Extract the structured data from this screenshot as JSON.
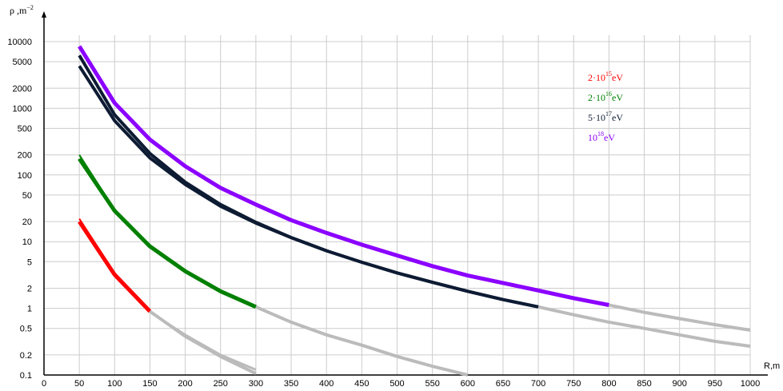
{
  "chart_data": {
    "type": "line",
    "ylabel": "ρ ,m",
    "ylabel_sup": "−2",
    "xlabel": "R,m",
    "x_scale": "linear",
    "y_scale": "log",
    "xlim": [
      0,
      1000
    ],
    "ylim": [
      0.1,
      10000
    ],
    "x_ticks": [
      0,
      50,
      100,
      150,
      200,
      250,
      300,
      350,
      400,
      450,
      500,
      550,
      600,
      650,
      700,
      750,
      800,
      850,
      900,
      950,
      1000
    ],
    "y_ticks": [
      0.1,
      0.2,
      0.5,
      1,
      2,
      5,
      10,
      20,
      50,
      100,
      200,
      500,
      1000,
      2000,
      5000,
      10000
    ],
    "y_tick_labels": [
      "0.1",
      "0.2",
      "0.5",
      "1",
      "2",
      "5",
      "10",
      "20",
      "50",
      "100",
      "200",
      "500",
      "1000",
      "2000",
      "5000",
      "10000"
    ],
    "grid": true,
    "legend_position": "top-right",
    "legend": [
      {
        "prefix": "2·10",
        "sup": "15",
        "suffix": "eV",
        "color": "#ff0000"
      },
      {
        "prefix": "2·10",
        "sup": "16",
        "suffix": "eV",
        "color": "#008000"
      },
      {
        "prefix": "5·10",
        "sup": "17",
        "suffix": "eV",
        "color": "#0d1b33"
      },
      {
        "prefix": "10",
        "sup": "18",
        "suffix": "eV",
        "color": "#8b00ff"
      }
    ],
    "series": [
      {
        "color": "#ff0000",
        "width": 5,
        "x": [
          50,
          100,
          150
        ],
        "y": [
          20,
          3.2,
          0.9
        ]
      },
      {
        "color": "#ff0000",
        "width": 2,
        "x": [
          50,
          100,
          150
        ],
        "y": [
          22,
          3.4,
          0.95
        ]
      },
      {
        "color": "#bbbbbb",
        "width": 4,
        "x": [
          150,
          200,
          250,
          300
        ],
        "y": [
          0.9,
          0.38,
          0.19,
          0.105
        ]
      },
      {
        "color": "#bbbbbb",
        "width": 3,
        "x": [
          150,
          200,
          250,
          300
        ],
        "y": [
          0.88,
          0.4,
          0.2,
          0.12
        ]
      },
      {
        "color": "#008000",
        "width": 5,
        "x": [
          50,
          100,
          150,
          200,
          250,
          300
        ],
        "y": [
          175,
          29,
          8.5,
          3.6,
          1.8,
          1.05
        ]
      },
      {
        "color": "#008000",
        "width": 2,
        "x": [
          50,
          100,
          150
        ],
        "y": [
          200,
          30,
          8.7
        ]
      },
      {
        "color": "#bbbbbb",
        "width": 4,
        "x": [
          300,
          350,
          400,
          450,
          500,
          550,
          600
        ],
        "y": [
          1.05,
          0.62,
          0.4,
          0.28,
          0.19,
          0.135,
          0.1
        ]
      },
      {
        "color": "#0d1b33",
        "width": 4,
        "x": [
          50,
          100,
          150,
          200,
          250,
          300,
          350,
          400,
          450,
          500,
          550,
          600,
          650,
          700
        ],
        "y": [
          4300,
          650,
          180,
          72,
          34,
          19,
          11.5,
          7.3,
          4.9,
          3.4,
          2.45,
          1.8,
          1.35,
          1.05
        ]
      },
      {
        "color": "#0d1b33",
        "width": 4,
        "x": [
          50,
          100,
          150,
          200,
          250,
          300,
          350,
          400,
          450,
          500,
          550,
          600,
          650,
          700
        ],
        "y": [
          6200,
          800,
          210,
          78,
          36,
          19.5,
          11.5,
          7.3,
          4.9,
          3.4,
          2.45,
          1.8,
          1.35,
          1.05
        ]
      },
      {
        "color": "#bbbbbb",
        "width": 4,
        "x": [
          700,
          750,
          800,
          850,
          900,
          950,
          1000
        ],
        "y": [
          1.05,
          0.8,
          0.62,
          0.5,
          0.4,
          0.32,
          0.27
        ]
      },
      {
        "color": "#8b00ff",
        "width": 5,
        "x": [
          50,
          100,
          150,
          200,
          250,
          300,
          350,
          400,
          450,
          500,
          550,
          600,
          650,
          700,
          750,
          800
        ],
        "y": [
          8500,
          1200,
          340,
          135,
          64,
          36,
          21,
          13.5,
          9,
          6.2,
          4.3,
          3.1,
          2.4,
          1.85,
          1.42,
          1.12
        ]
      },
      {
        "color": "#bbbbbb",
        "width": 4,
        "x": [
          800,
          850,
          900,
          950,
          1000
        ],
        "y": [
          1.12,
          0.87,
          0.7,
          0.57,
          0.47
        ]
      }
    ]
  }
}
